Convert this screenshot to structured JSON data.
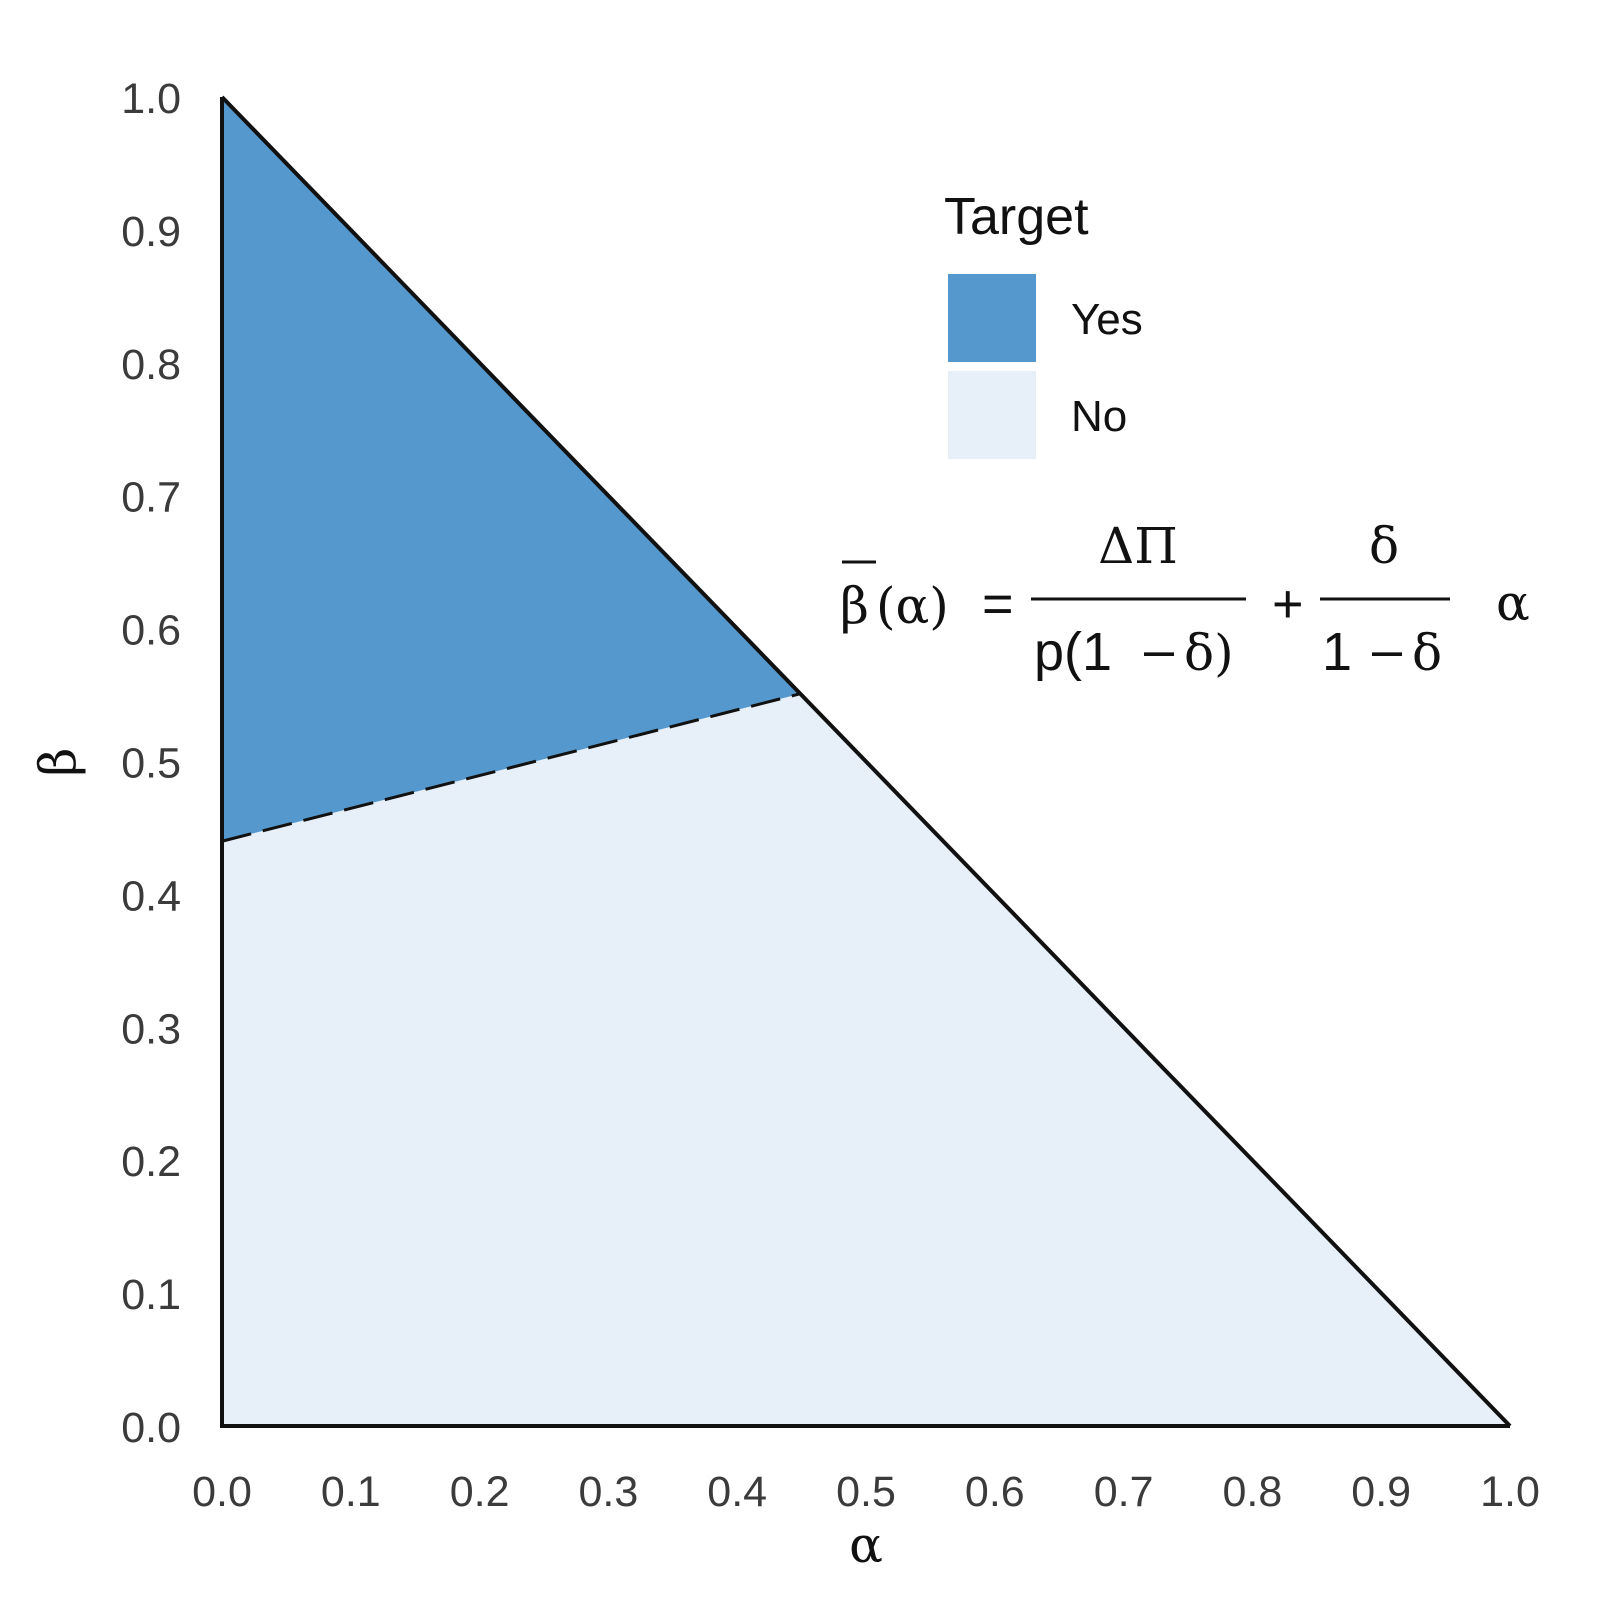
{
  "chart_data": {
    "type": "area",
    "title": "",
    "xlabel": "α",
    "ylabel": "β",
    "xlim": [
      0,
      1
    ],
    "ylim": [
      0,
      1
    ],
    "x_ticks": [
      "0.0",
      "0.1",
      "0.2",
      "0.3",
      "0.4",
      "0.5",
      "0.6",
      "0.7",
      "0.8",
      "0.9",
      "1.0"
    ],
    "y_ticks": [
      "0.0",
      "0.1",
      "0.2",
      "0.3",
      "0.4",
      "0.5",
      "0.6",
      "0.7",
      "0.8",
      "0.9",
      "1.0"
    ],
    "grid": false,
    "legend": {
      "title": "Target",
      "position": "top-right",
      "entries": [
        {
          "label": "Yes",
          "color": "#5598cd"
        },
        {
          "label": "No",
          "color": "#e7eff8"
        }
      ]
    },
    "regions": [
      {
        "name": "Yes",
        "color": "#5598cd",
        "polygon": [
          [
            0,
            0.44
          ],
          [
            0,
            1.0
          ],
          [
            0.449,
            0.551
          ]
        ]
      },
      {
        "name": "No",
        "color": "#e7eff8",
        "polygon": [
          [
            0,
            0
          ],
          [
            1.0,
            0
          ],
          [
            0.449,
            0.551
          ],
          [
            0,
            0.44
          ]
        ]
      }
    ],
    "lines": [
      {
        "style": "solid",
        "points": [
          [
            0,
            1.0
          ],
          [
            1.0,
            0
          ]
        ]
      },
      {
        "style": "dashed",
        "points": [
          [
            0,
            0.44
          ],
          [
            0.449,
            0.551
          ]
        ]
      }
    ],
    "annotation": {
      "lhs_symbol": "β",
      "lhs_arg": "(α)",
      "equals": "=",
      "frac1_num": "ΔΠ",
      "frac1_den_left": "p(1",
      "frac1_den_minus": "–",
      "frac1_den_right": "δ)",
      "plus": "+",
      "frac2_num": "δ",
      "frac2_den_left": "1",
      "frac2_den_minus": "–",
      "frac2_den_right": "δ",
      "tail": "α"
    }
  }
}
